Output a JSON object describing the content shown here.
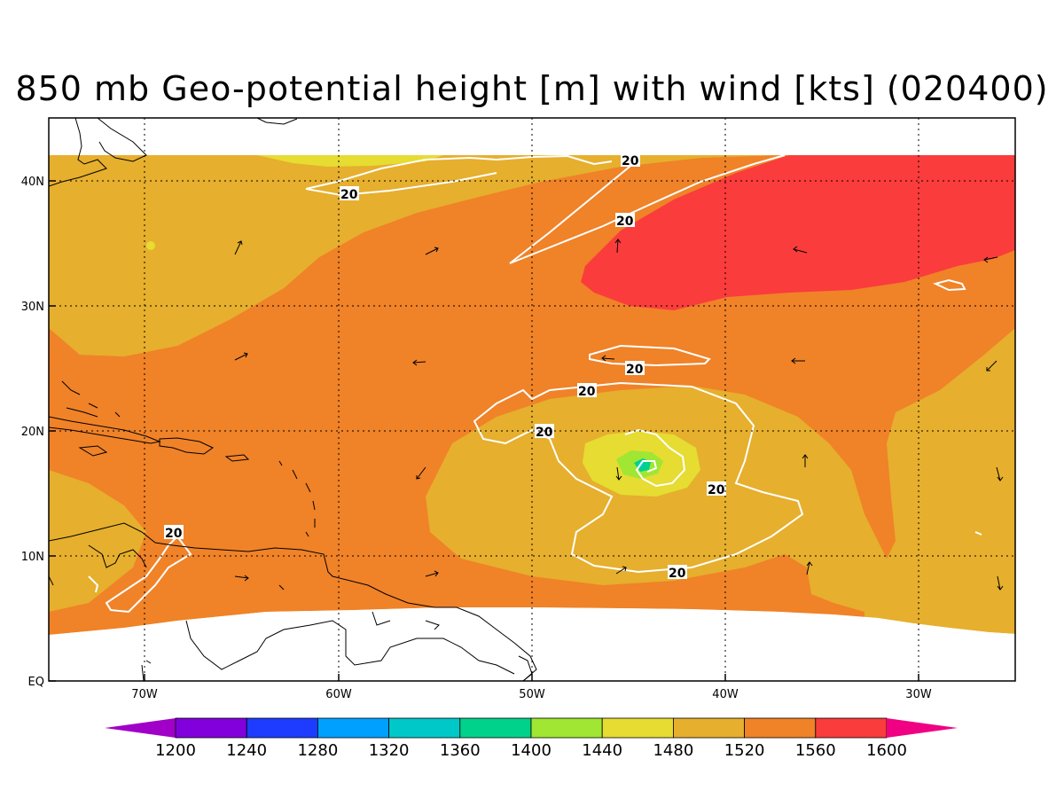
{
  "title": "850 mb Geo-potential height [m] with wind [kts] (020400)",
  "chart_data": {
    "type": "heatmap",
    "title": "850 mb Geo-potential height [m] with wind [kts] (020400)",
    "x_axis": {
      "ticks": [
        "70W",
        "60W",
        "50W",
        "40W",
        "30W"
      ],
      "range": [
        -75,
        -25
      ]
    },
    "y_axis": {
      "ticks": [
        "EQ",
        "10N",
        "20N",
        "30N",
        "40N"
      ],
      "range": [
        0,
        45
      ]
    },
    "grid": true,
    "colorbar": {
      "levels": [
        1200,
        1240,
        1280,
        1320,
        1360,
        1400,
        1440,
        1480,
        1520,
        1560,
        1600
      ],
      "colors": [
        "#a000c8",
        "#8200dc",
        "#1e3cff",
        "#00a0ff",
        "#00c8c8",
        "#00d28c",
        "#a0e632",
        "#e6dc32",
        "#e6af2d",
        "#f08228",
        "#fa3c3c",
        "#f00082"
      ],
      "extend": "both"
    },
    "fields": {
      "high_1600_region": {
        "center": [
          -37,
          36
        ],
        "approx_value": 1600
      },
      "low_center": {
        "center": [
          -44,
          17
        ],
        "approx_value": 1420
      }
    },
    "wind_speed_contour_level": 20,
    "contour_labels": [
      "20",
      "20",
      "20",
      "20",
      "20",
      "20",
      "20",
      "20"
    ],
    "colors": {
      "c1480": "#e6dc32",
      "c1520": "#e6af2d",
      "c1560": "#f08228",
      "c1600": "#fa3c3c",
      "c1440": "#a0e632",
      "c1400": "#00d28c",
      "c1360": "#00c8c8",
      "contour": "#ffffff",
      "coast": "#000000"
    }
  }
}
